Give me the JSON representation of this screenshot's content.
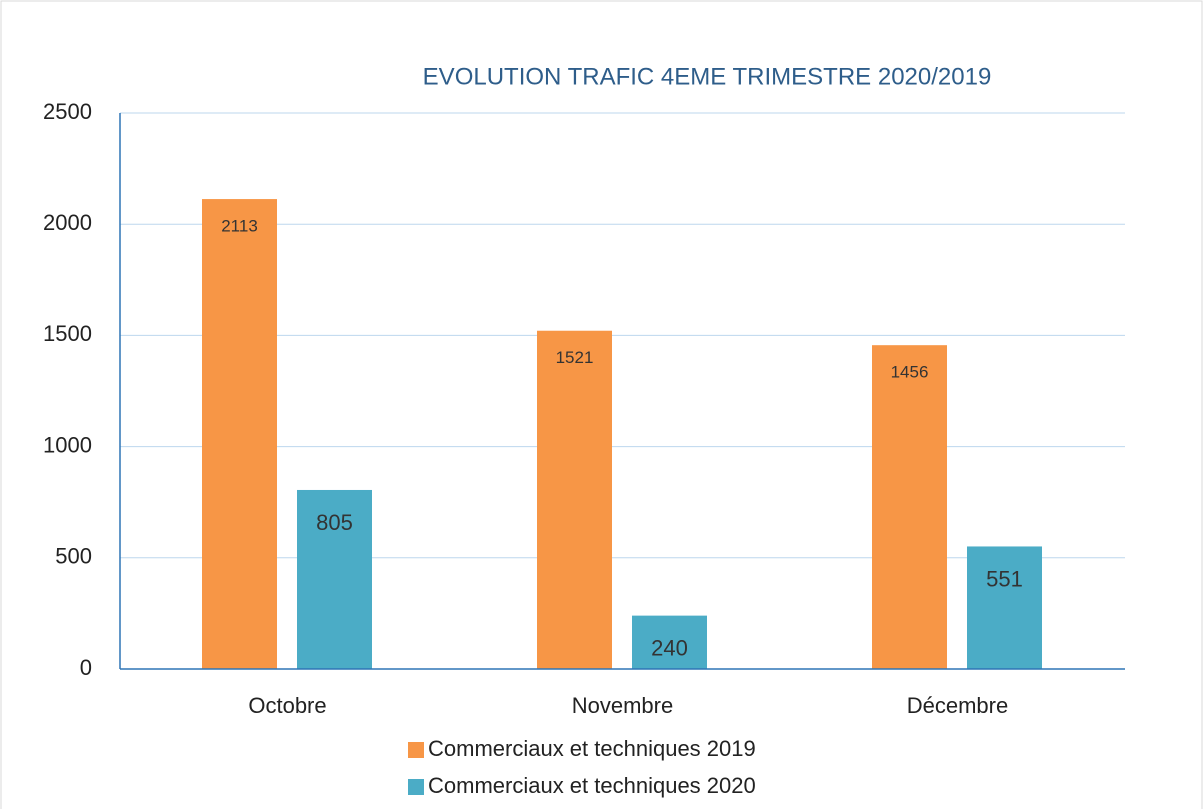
{
  "chart_data": {
    "type": "bar",
    "title": "EVOLUTION TRAFIC 4EME TRIMESTRE 2020/2019",
    "categories": [
      "Octobre",
      "Novembre",
      "Décembre"
    ],
    "series": [
      {
        "name": "Commerciaux et techniques 2019",
        "color": "#f79646",
        "values": [
          2113,
          1521,
          1456
        ]
      },
      {
        "name": "Commerciaux et techniques 2020",
        "color": "#4bacc6",
        "values": [
          805,
          240,
          551
        ]
      }
    ],
    "ylim": [
      0,
      2500
    ],
    "yticks": [
      0,
      500,
      1000,
      1500,
      2000,
      2500
    ],
    "grid": true
  }
}
